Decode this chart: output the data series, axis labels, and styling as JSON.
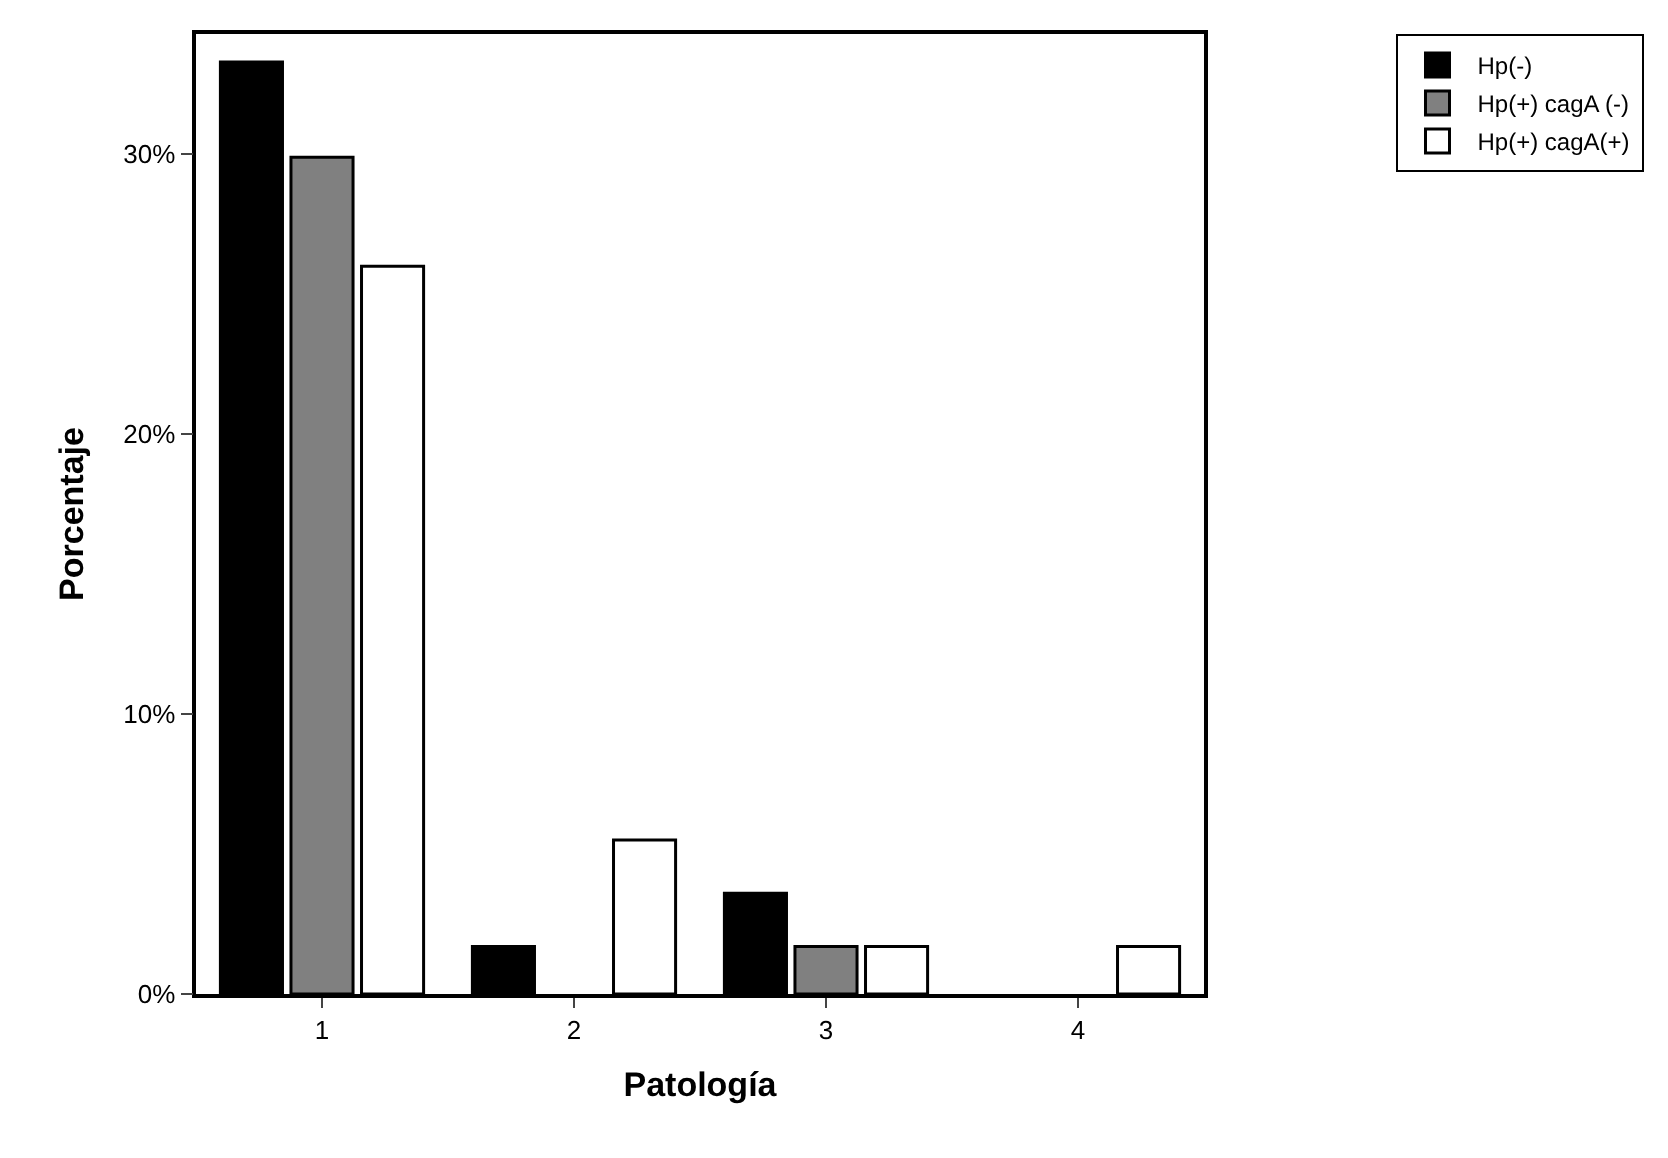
{
  "chart_data": {
    "type": "bar",
    "xlabel": "Patología",
    "ylabel": "Porcentaje",
    "categories": [
      "1",
      "2",
      "3",
      "4"
    ],
    "series": [
      {
        "name": "Hp(-)",
        "color": "#000000",
        "values": [
          33.3,
          1.7,
          3.6,
          0
        ]
      },
      {
        "name": "Hp(+) cagA (-)",
        "color": "#808080",
        "values": [
          29.9,
          0,
          1.7,
          0
        ]
      },
      {
        "name": "Hp(+) cagA(+)",
        "color": "#ffffff",
        "values": [
          26,
          5.5,
          1.7,
          1.7
        ]
      }
    ],
    "ylim": [
      0,
      34.3
    ],
    "yticks": [
      {
        "value": 0,
        "label": "0%"
      },
      {
        "value": 10,
        "label": "10%"
      },
      {
        "value": 20,
        "label": "20%"
      },
      {
        "value": 30,
        "label": "30%"
      }
    ],
    "legend": "top right"
  }
}
